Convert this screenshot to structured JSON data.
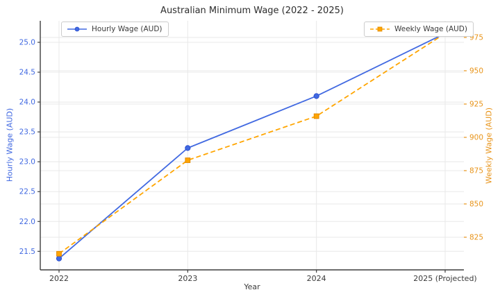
{
  "chart_data": {
    "type": "line",
    "title": "Australian Minimum Wage (2022 - 2025)",
    "xlabel": "Year",
    "x_categories": [
      "2022",
      "2023",
      "2024",
      "2025 (Projected)"
    ],
    "series": [
      {
        "name": "Hourly Wage (AUD)",
        "axis": "left",
        "color": "#4169e1",
        "marker_edge": "#2a4fd0",
        "line_style": "solid",
        "marker": "circle",
        "values": [
          21.38,
          23.23,
          24.1,
          25.15
        ]
      },
      {
        "name": "Weekly Wage (AUD)",
        "axis": "right",
        "color": "#ffa500",
        "marker_edge": "#e08900",
        "line_style": "dashed",
        "marker": "square",
        "values": [
          812.6,
          882.8,
          915.9,
          978.0
        ]
      }
    ],
    "left_axis": {
      "label": "Hourly Wage (AUD)",
      "ticks": [
        21.5,
        22.0,
        22.5,
        23.0,
        23.5,
        24.0,
        24.5,
        25.0
      ],
      "range": [
        21.19,
        25.36
      ],
      "color": "#4169e1",
      "tick_format_decimals": 1
    },
    "right_axis": {
      "label": "Weekly Wage (AUD)",
      "ticks": [
        825,
        850,
        875,
        900,
        925,
        950,
        975
      ],
      "range": [
        800.5,
        987.5
      ],
      "color": "#e8941a",
      "tick_format_decimals": 0
    },
    "grid": true,
    "grid_color": "#e8e8e8",
    "spine_color": "#3d3d3d",
    "x_tick_color": "#3a3a3a",
    "title_color": "#2d2d2d",
    "legend_positions": [
      "upper left",
      "upper right"
    ]
  }
}
